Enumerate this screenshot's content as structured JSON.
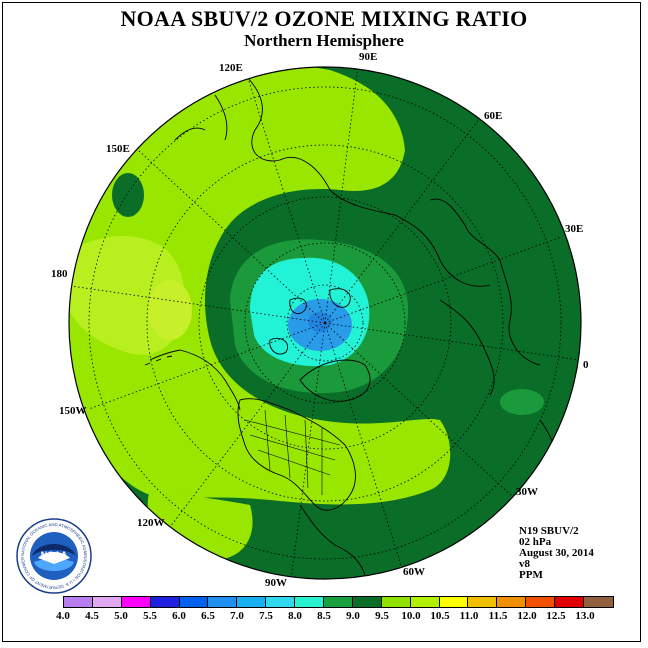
{
  "header": {
    "title": "NOAA SBUV/2 OZONE MIXING RATIO",
    "subtitle": "Northern Hemisphere"
  },
  "map": {
    "projection": "polar stereographic, north pole centered",
    "longitude_labels": [
      "90E",
      "60E",
      "30E",
      "0",
      "30W",
      "60W",
      "90W",
      "120W",
      "150W",
      "180",
      "150E",
      "120E"
    ],
    "colors": {
      "background_ocean": "#0a6e28",
      "band_light": "#99e600",
      "band_lighter": "#b8ef1f",
      "band_mid": "#1a9a3a",
      "band_dark": "#0a6e28",
      "core_cyan": "#22f2d6",
      "core_blue": "#2a9be8",
      "coast": "#000000"
    }
  },
  "info": {
    "satellite": "N19 SBUV/2",
    "pressure": "02 hPa",
    "date": "August 30, 2014",
    "version": "v8",
    "units": "PPM"
  },
  "colorbar": {
    "labels": [
      "4.0",
      "4.5",
      "5.0",
      "5.5",
      "6.0",
      "6.5",
      "7.0",
      "7.5",
      "8.0",
      "8.5",
      "9.0",
      "9.5",
      "10.0",
      "10.5",
      "11.0",
      "11.5",
      "12.0",
      "12.5",
      "13.0"
    ],
    "colors": [
      "#b87ef0",
      "#e0a8f0",
      "#ff00ff",
      "#2020e0",
      "#0060f0",
      "#2090f0",
      "#18b0f0",
      "#30d8f0",
      "#28f2d0",
      "#18a040",
      "#0a6e28",
      "#90e000",
      "#b0f000",
      "#ffff00",
      "#f0c000",
      "#f09000",
      "#f05000",
      "#e00000",
      "#906040"
    ]
  },
  "logo": {
    "text": "NOAA",
    "ring_text": "NATIONAL OCEANIC AND ATMOSPHERIC ADMINISTRATION • U.S. DEPARTMENT OF COMMERCE"
  }
}
